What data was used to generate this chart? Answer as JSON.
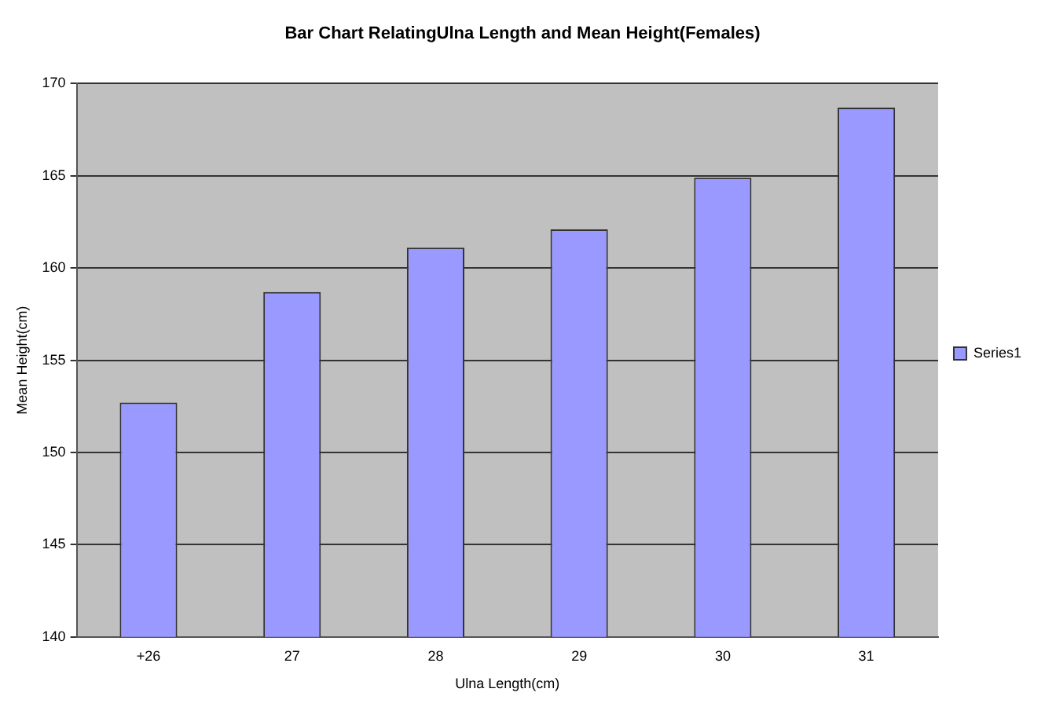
{
  "chart_data": {
    "type": "bar",
    "title": "Bar Chart RelatingUlna Length and Mean Height(Females)",
    "xlabel": "Ulna Length(cm)",
    "ylabel": "Mean Height(cm)",
    "categories": [
      "+26",
      "27",
      "28",
      "29",
      "30",
      "31"
    ],
    "series": [
      {
        "name": "Series1",
        "color": "#9999ff",
        "values": [
          152.7,
          158.7,
          161.1,
          162.1,
          164.9,
          168.7
        ]
      }
    ],
    "ylim": [
      140,
      170
    ],
    "yticks": [
      140,
      145,
      150,
      155,
      160,
      165,
      170
    ],
    "grid": "y",
    "legend": "right"
  }
}
